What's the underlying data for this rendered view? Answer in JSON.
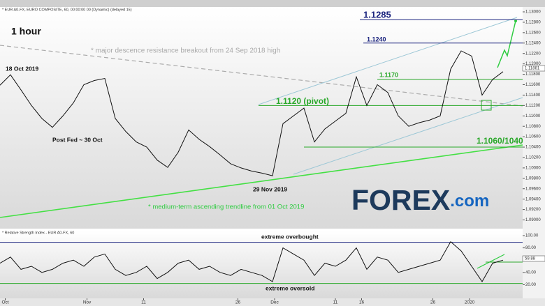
{
  "header": "* EUR A0-FX, EURO COMPOSITE, 60, 00:00:00 00 (Dynamic) (delayed 15)",
  "chart_data": [
    {
      "type": "line",
      "title": "1 hour",
      "values": [
        1.1159,
        1.1179,
        1.115,
        1.112,
        1.1095,
        1.1078,
        1.11,
        1.1125,
        1.116,
        1.1168,
        1.1172,
        1.1095,
        1.107,
        1.105,
        1.104,
        1.1015,
        1.1001,
        1.103,
        1.1073,
        1.1055,
        1.1041,
        1.1025,
        1.1008,
        1.1,
        1.0994,
        1.099,
        1.0985,
        1.1085,
        1.11,
        1.1115,
        1.105,
        1.1075,
        1.109,
        1.1105,
        1.1175,
        1.112,
        1.116,
        1.1145,
        1.11,
        1.108,
        1.1087,
        1.1092,
        1.11,
        1.119,
        1.1225,
        1.1215,
        1.114,
        1.117,
        1.1185
      ],
      "color": "#111111",
      "ylim": [
        1.089,
        1.13
      ],
      "yticks": [
        {
          "value": 1.09,
          "label": "1.09000"
        },
        {
          "value": 1.092,
          "label": "1.09200"
        },
        {
          "value": 1.094,
          "label": "1.09400"
        },
        {
          "value": 1.096,
          "label": "1.09600"
        },
        {
          "value": 1.098,
          "label": "1.09800"
        },
        {
          "value": 1.1,
          "label": "1.10000"
        },
        {
          "value": 1.102,
          "label": "1.10200"
        },
        {
          "value": 1.104,
          "label": "1.10400"
        },
        {
          "value": 1.106,
          "label": "1.10600"
        },
        {
          "value": 1.108,
          "label": "1.10800"
        },
        {
          "value": 1.11,
          "label": "1.11000"
        },
        {
          "value": 1.112,
          "label": "1.11200"
        },
        {
          "value": 1.114,
          "label": "1.11400"
        },
        {
          "value": 1.116,
          "label": "1.11600"
        },
        {
          "value": 1.118,
          "label": "1.11800"
        },
        {
          "value": 1.12,
          "label": "1.12000"
        },
        {
          "value": 1.122,
          "label": "1.12200"
        },
        {
          "value": 1.124,
          "label": "1.12400"
        },
        {
          "value": 1.126,
          "label": "1.12600"
        },
        {
          "value": 1.128,
          "label": "1.12800"
        },
        {
          "value": 1.13,
          "label": "1.13000"
        }
      ],
      "last_label": "1.11881",
      "levels": [
        {
          "value": 1.1285,
          "label": "1.1285",
          "color": "#1a237e"
        },
        {
          "value": 1.124,
          "label": "1.1240",
          "color": "#1a237e"
        },
        {
          "value": 1.117,
          "label": "1.1170",
          "color": "#2aa82a"
        },
        {
          "value": 1.112,
          "label": "1.1120 (pivot)",
          "color": "#2aa82a"
        },
        {
          "value": 1.104,
          "label": "1.1060/1040",
          "color": "#2aa82a"
        }
      ],
      "annotations": [
        "18 Oct 2019",
        "Post Fed ~ 30 Oct",
        "29 Nov 2019",
        "* major descence resistance breakout from 24 Sep 2018 high",
        "* medium-term ascending trendline from 01 Oct 2019"
      ],
      "xticks": [
        {
          "value": 0.5,
          "label": "Oct"
        },
        {
          "value": 8.3,
          "label": "Nov"
        },
        {
          "value": 13.7,
          "label": "11"
        },
        {
          "value": 22.7,
          "label": "26"
        },
        {
          "value": 26.2,
          "label": "Dec"
        },
        {
          "value": 32,
          "label": "11"
        },
        {
          "value": 34.5,
          "label": "16"
        },
        {
          "value": 41.3,
          "label": "26"
        },
        {
          "value": 44.8,
          "label": "2020"
        }
      ]
    },
    {
      "type": "line",
      "title": "* Relative Strength Index - EUR A0-FX, 60",
      "values": [
        55,
        65,
        45,
        50,
        40,
        45,
        55,
        60,
        50,
        65,
        70,
        45,
        35,
        40,
        50,
        30,
        40,
        55,
        60,
        45,
        50,
        40,
        35,
        45,
        40,
        35,
        25,
        80,
        70,
        60,
        35,
        55,
        50,
        60,
        80,
        45,
        65,
        60,
        40,
        45,
        50,
        55,
        60,
        90,
        75,
        50,
        25,
        55,
        60
      ],
      "color": "#111111",
      "ylim": [
        0,
        100
      ],
      "yticks": [
        {
          "value": 20,
          "label": "20.00"
        },
        {
          "value": 40,
          "label": "40.00"
        },
        {
          "value": 80,
          "label": "80.00"
        },
        {
          "value": 100,
          "label": "100.00"
        }
      ],
      "last_label": "59.88",
      "levels": [
        {
          "value": 89,
          "label": "extreme overbought",
          "color": "#1a237e"
        },
        {
          "value": 22,
          "label": "extreme oversold",
          "color": "#2aa82a"
        }
      ]
    }
  ],
  "logo": {
    "brand": "FOREX",
    "suffix": ".com"
  }
}
